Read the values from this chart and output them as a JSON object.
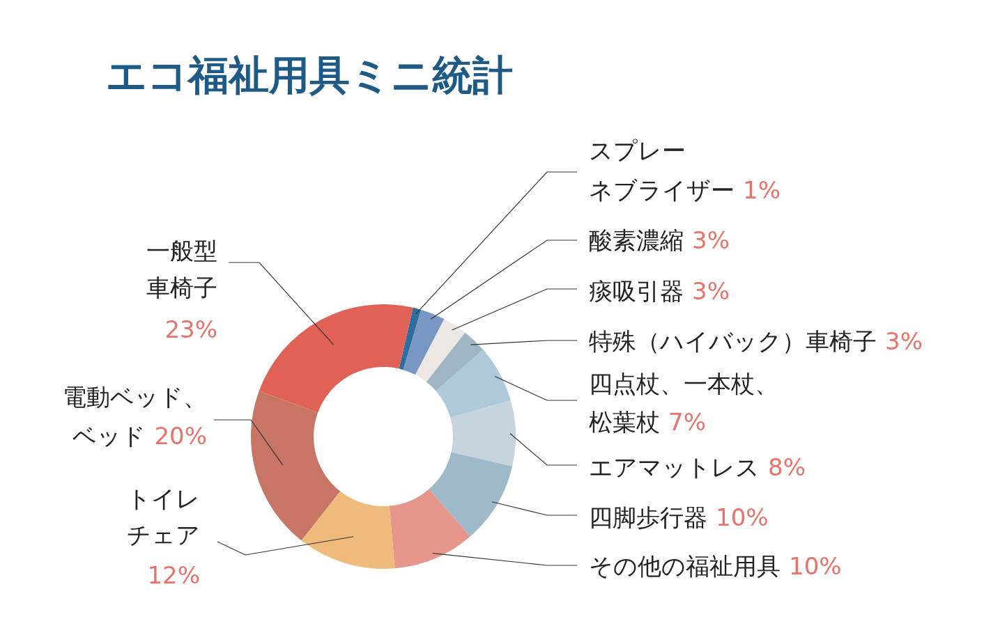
{
  "chart_data": {
    "type": "donut",
    "title": "エコ福祉用具ミニ統計",
    "categories": [
      "スプレーネブライザー",
      "酸素濃縮",
      "痰吸引器",
      "特殊（ハイバック）車椅子",
      "四点杖、一本杖、松葉杖",
      "エアマットレス",
      "四脚歩行器",
      "その他の福祉用具",
      "トイレチェア",
      "電動ベッド、ベッド",
      "一般型車椅子"
    ],
    "values": [
      1,
      3,
      3,
      3,
      7,
      8,
      10,
      10,
      12,
      20,
      23
    ],
    "value_labels": [
      "1%",
      "3%",
      "3%",
      "3%",
      "7%",
      "8%",
      "10%",
      "10%",
      "12%",
      "20%",
      "23%"
    ],
    "colors": [
      "#2e6e9e",
      "#7897c2",
      "#ede8e4",
      "#9fb6c4",
      "#aec9d9",
      "#c6d4dd",
      "#9eb9c9",
      "#e6968a",
      "#efbb7d",
      "#c77666",
      "#e06257"
    ]
  }
}
